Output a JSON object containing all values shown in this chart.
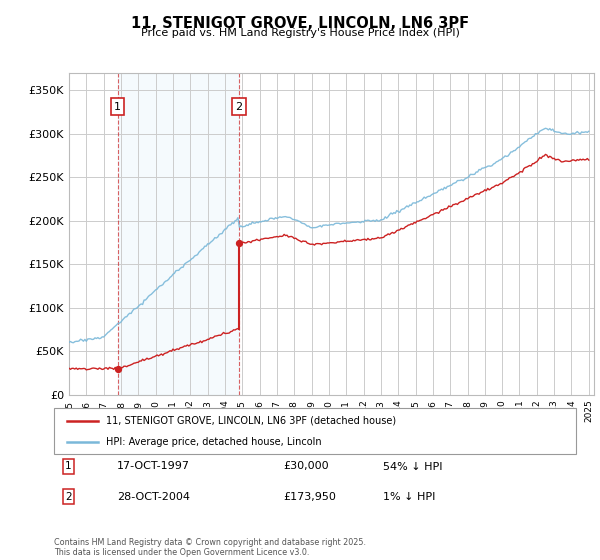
{
  "title": "11, STENIGOT GROVE, LINCOLN, LN6 3PF",
  "subtitle": "Price paid vs. HM Land Registry's House Price Index (HPI)",
  "y_ticks": [
    0,
    50000,
    100000,
    150000,
    200000,
    250000,
    300000,
    350000
  ],
  "y_tick_labels": [
    "£0",
    "£50K",
    "£100K",
    "£150K",
    "£200K",
    "£250K",
    "£300K",
    "£350K"
  ],
  "hpi_color": "#7ab8d9",
  "price_color": "#cc2222",
  "sale1_x": 1997.8,
  "sale1_price": 30000,
  "sale2_x": 2004.82,
  "sale2_price": 173950,
  "sale1_date": "17-OCT-1997",
  "sale1_price_str": "£30,000",
  "sale1_note": "54% ↓ HPI",
  "sale2_date": "28-OCT-2004",
  "sale2_price_str": "£173,950",
  "sale2_note": "1% ↓ HPI",
  "legend_label1": "11, STENIGOT GROVE, LINCOLN, LN6 3PF (detached house)",
  "legend_label2": "HPI: Average price, detached house, Lincoln",
  "footer": "Contains HM Land Registry data © Crown copyright and database right 2025.\nThis data is licensed under the Open Government Licence v3.0.",
  "bg_shade_color": "#ddeeff",
  "grid_color": "#cccccc",
  "y_max": 370000
}
